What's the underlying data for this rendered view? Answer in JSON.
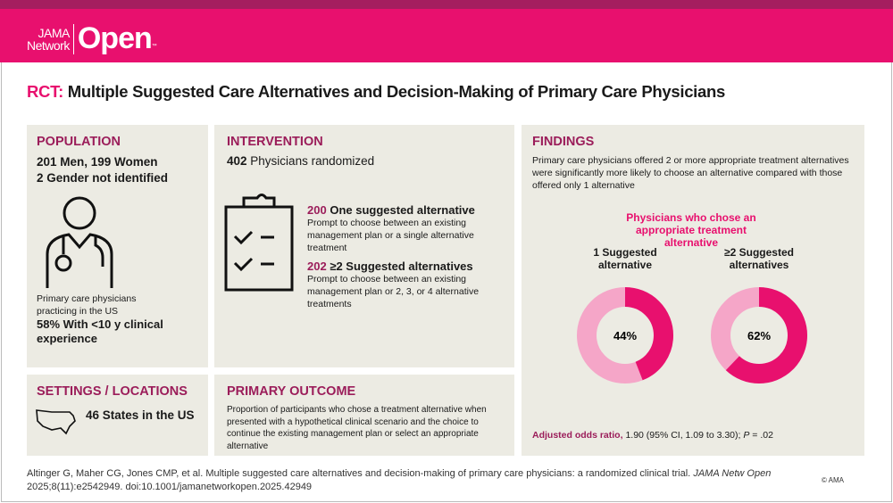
{
  "header": {
    "logo_line1": "JAMA",
    "logo_line2": "Network",
    "logo_main": "Open",
    "logo_tm": "™"
  },
  "title": {
    "prefix": "RCT:",
    "text": "Multiple Suggested Care Alternatives and Decision-Making of Primary Care Physicians"
  },
  "population": {
    "heading": "POPULATION",
    "line1": "201 Men, 199 Women",
    "line2": "2 Gender not identified",
    "desc": "Primary care physicians practicing in the US",
    "stat": "58% With <10 y clinical experience",
    "icon": "physician-icon"
  },
  "intervention": {
    "heading": "INTERVENTION",
    "count": "402",
    "count_label": "Physicians randomized",
    "icon": "clipboard-checklist-icon",
    "arms": [
      {
        "n": "200",
        "label": "One suggested alternative",
        "desc": "Prompt to choose between an existing management plan or a single alternative treatment"
      },
      {
        "n": "202",
        "label": "≥2 Suggested alternatives",
        "desc": "Prompt to choose between an existing management plan or 2, 3, or 4 alternative treatments"
      }
    ]
  },
  "settings": {
    "heading": "SETTINGS / LOCATIONS",
    "text": "46 States in the US",
    "icon": "us-map-icon"
  },
  "outcome": {
    "heading": "PRIMARY OUTCOME",
    "text": "Proportion of participants who chose a treatment alternative when presented with a hypothetical clinical scenario and the choice to continue the existing management plan or select an appropriate alternative"
  },
  "findings": {
    "heading": "FINDINGS",
    "text": "Primary care physicians offered 2 or more appropriate treatment alternatives were significantly more likely to choose an alternative compared with those offered only 1 alternative",
    "chart_title": "Physicians who chose an appropriate treatment alternative",
    "or_label": "Adjusted odds ratio,",
    "or_text": "1.90 (95% CI, 1.09 to 3.30);",
    "p_label": "P",
    "p_text": "= .02"
  },
  "chart_data": {
    "type": "pie",
    "title": "Physicians who chose an appropriate treatment alternative",
    "groups": [
      {
        "label": "1 Suggested alternative",
        "value": 44,
        "display": "44%"
      },
      {
        "label": "≥2 Suggested alternatives",
        "value": 62,
        "display": "62%"
      }
    ],
    "colors": {
      "chose": "#e8106e",
      "remainder": "#f5a6c8"
    }
  },
  "footer": {
    "citation": "Altinger G, Maher CG, Jones CMP, et al. Multiple suggested care alternatives and decision-making of primary care physicians: a randomized clinical trial.",
    "journal": "JAMA Netw Open",
    "details": "2025;8(11):e2542949. doi:10.1001/jamanetworkopen.2025.42949",
    "copyright": "© AMA"
  }
}
